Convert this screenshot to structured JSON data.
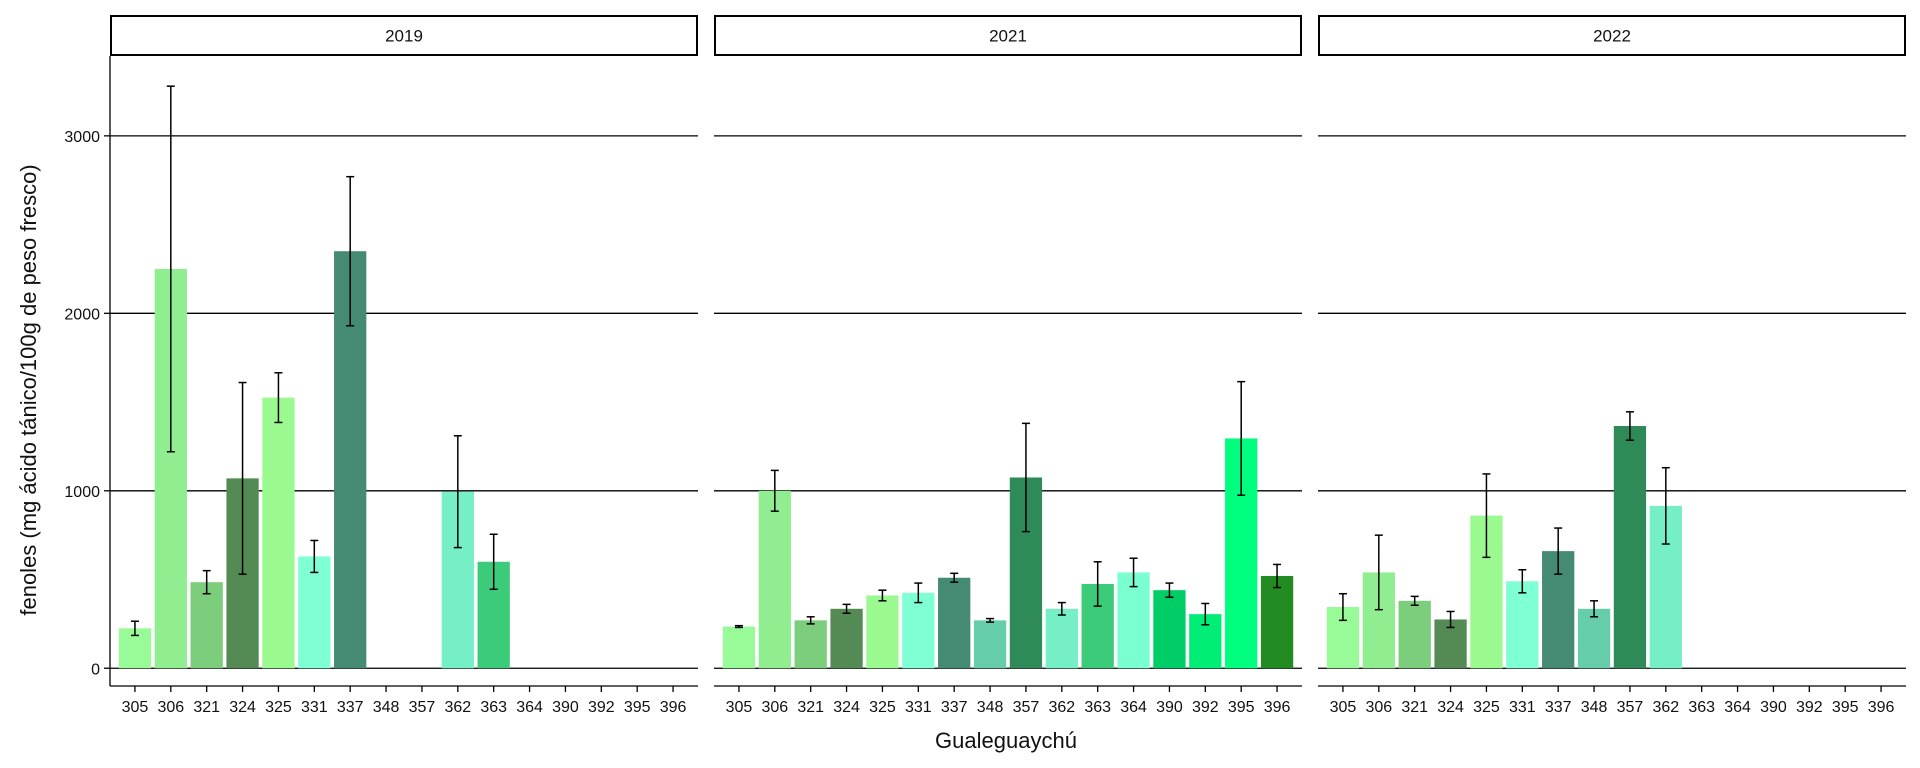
{
  "chart_data": {
    "type": "bar",
    "xlabel": "Gualeguaychú",
    "ylabel": "fenoles (mg ácido tánico/100g de peso fresco)",
    "ylim": [
      -100,
      3450
    ],
    "yticks": [
      0,
      1000,
      2000,
      3000
    ],
    "grid": "horizontal major lines",
    "error_bars": true,
    "categories": [
      "305",
      "306",
      "321",
      "324",
      "325",
      "331",
      "337",
      "348",
      "357",
      "362",
      "363",
      "364",
      "390",
      "392",
      "395",
      "396"
    ],
    "colors": {
      "305": "#98FB98",
      "306": "#90EE90",
      "321": "#7CCD7C",
      "324": "#548B54",
      "325": "#9AFA90",
      "331": "#7FFFD4",
      "337": "#458B74",
      "348": "#66CDAA",
      "357": "#2E8B57",
      "362": "#76EEC6",
      "363": "#3CCB79",
      "364": "#7AFFD0",
      "390": "#00CD66",
      "392": "#00EE76",
      "395": "#00FF7F",
      "396": "#228B22"
    },
    "panels": [
      {
        "title": "2019",
        "values": [
          225,
          2250,
          485,
          1070,
          1525,
          630,
          2350,
          null,
          null,
          995,
          600,
          null,
          null,
          null,
          null,
          null
        ],
        "errors": [
          40,
          1030,
          65,
          540,
          140,
          90,
          420,
          null,
          null,
          315,
          155,
          null,
          null,
          null,
          null,
          null
        ]
      },
      {
        "title": "2021",
        "values": [
          235,
          1000,
          270,
          335,
          410,
          425,
          510,
          270,
          1075,
          335,
          475,
          540,
          440,
          305,
          1295,
          520
        ],
        "errors": [
          5,
          115,
          20,
          25,
          30,
          55,
          25,
          10,
          305,
          35,
          125,
          80,
          40,
          60,
          320,
          65
        ],
        "data_labels": []
      },
      {
        "title": "2022",
        "values": [
          345,
          540,
          380,
          275,
          860,
          490,
          660,
          335,
          1365,
          915,
          null,
          null,
          null,
          null,
          null,
          null
        ],
        "errors": [
          75,
          210,
          25,
          45,
          235,
          65,
          130,
          45,
          80,
          215,
          null,
          null,
          null,
          null,
          null,
          null
        ]
      }
    ]
  }
}
